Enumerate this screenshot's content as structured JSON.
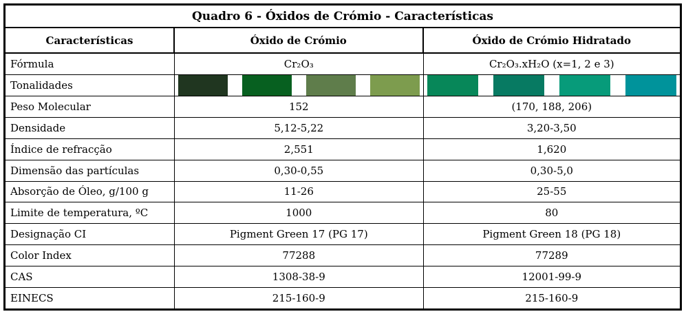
{
  "table": {
    "title": "Quadro 6 - Óxidos de Crómio - Características",
    "columns": [
      "Características",
      "Óxido de Crómio",
      "Óxido de Crómio Hidratado"
    ],
    "rows": [
      {
        "label": "Fórmula",
        "type": "text",
        "values": [
          "Cr₂O₃",
          "Cr₂O₃.xH₂O (x=1, 2 e 3)"
        ]
      },
      {
        "label": "Tonalidades",
        "type": "swatches",
        "swatches": [
          [
            "#203620",
            "#076020",
            "#5f7d4b",
            "#7d9c4e"
          ],
          [
            "#078759",
            "#077a62",
            "#079b7a",
            "#00939b"
          ]
        ],
        "swatch_names": [
          [
            "very-dark-green",
            "forest-green",
            "sage-green",
            "yellow-green"
          ],
          [
            "sea-green",
            "teal-green",
            "bright-teal-green",
            "cyan-teal"
          ]
        ]
      },
      {
        "label": "Peso Molecular",
        "type": "text",
        "values": [
          "152",
          "(170, 188, 206)"
        ]
      },
      {
        "label": "Densidade",
        "type": "text",
        "values": [
          "5,12-5,22",
          "3,20-3,50"
        ]
      },
      {
        "label": "Índice de refracção",
        "type": "text",
        "values": [
          "2,551",
          "1,620"
        ]
      },
      {
        "label": "Dimensão das partículas",
        "type": "text",
        "values": [
          "0,30-0,55",
          "0,30-5,0"
        ]
      },
      {
        "label": "Absorção de Óleo, g/100 g",
        "type": "text",
        "values": [
          "11-26",
          "25-55"
        ]
      },
      {
        "label": "Limite de temperatura, ºC",
        "type": "text",
        "values": [
          "1000",
          "80"
        ]
      },
      {
        "label": "Designação CI",
        "type": "text",
        "values": [
          "Pigment Green 17 (PG 17)",
          "Pigment Green 18 (PG 18)"
        ]
      },
      {
        "label": "Color Index",
        "type": "text",
        "values": [
          "77288",
          "77289"
        ]
      },
      {
        "label": "CAS",
        "type": "text",
        "values": [
          "1308-38-9",
          "12001-99-9"
        ]
      },
      {
        "label": "EINECS",
        "type": "text",
        "values": [
          "215-160-9",
          "215-160-9"
        ]
      }
    ]
  }
}
